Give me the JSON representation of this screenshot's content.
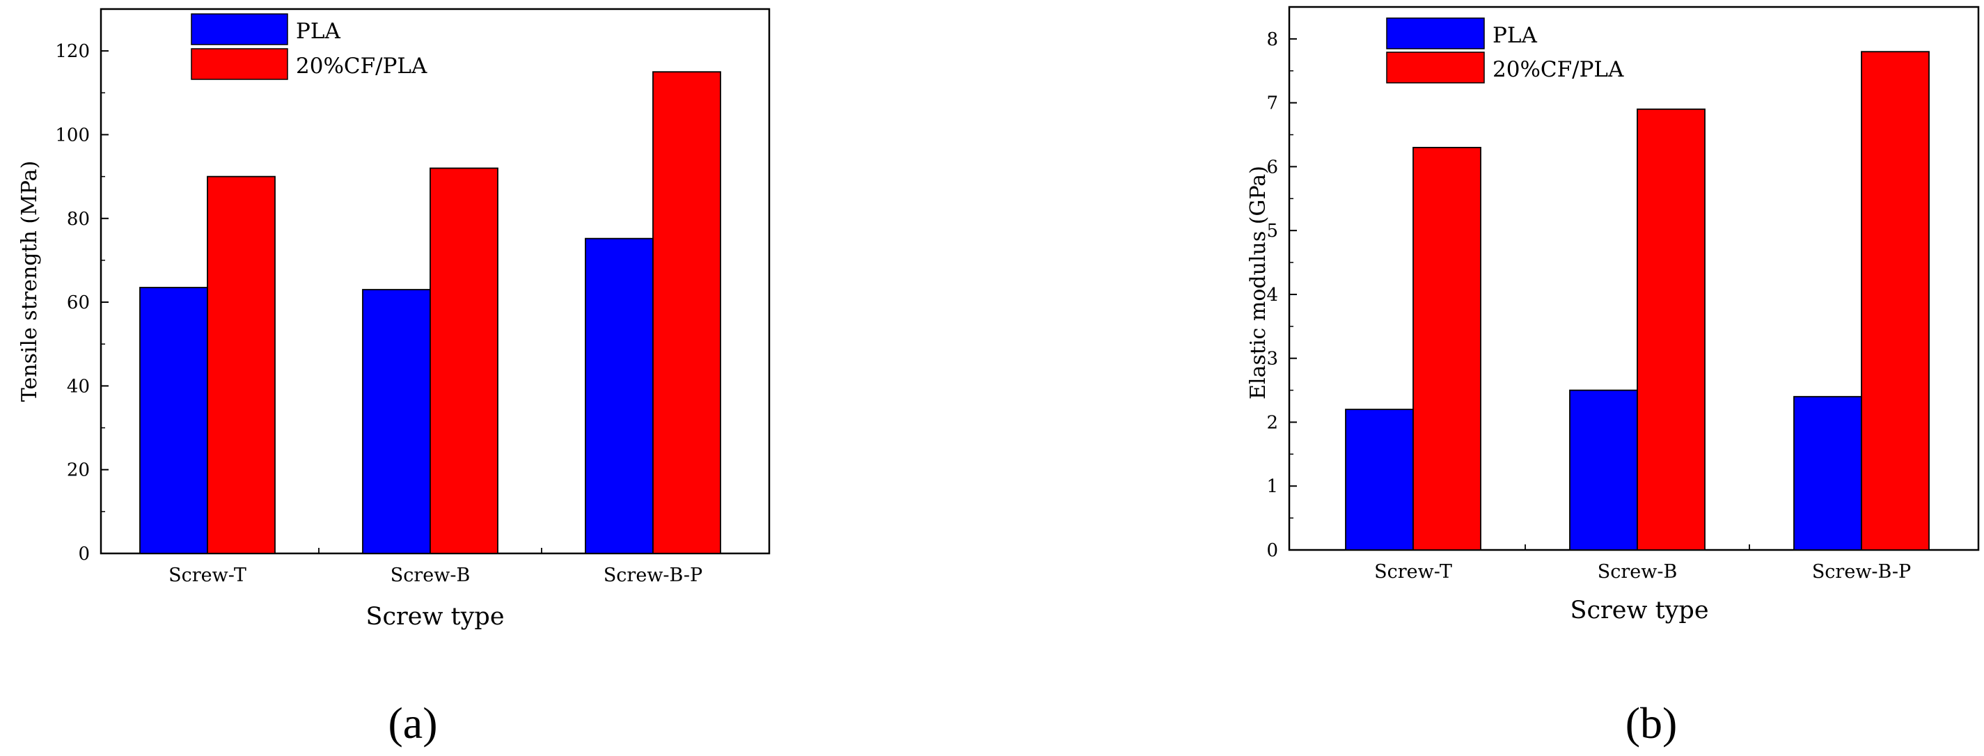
{
  "chart_data": [
    {
      "type": "bar",
      "panel_label": "(a)",
      "categories": [
        "Screw-T",
        "Screw-B",
        "Screw-B-P"
      ],
      "series": [
        {
          "name": "PLA",
          "values": [
            63.5,
            63,
            75.2
          ],
          "color": "#0000FF"
        },
        {
          "name": "20%CF/PLA",
          "values": [
            90,
            92,
            115
          ],
          "color": "#FF0000"
        }
      ],
      "xlabel": "Screw type",
      "ylabel": "Tensile strength (MPa)",
      "ylim": [
        0,
        130
      ],
      "yticks": [
        0,
        20,
        40,
        60,
        80,
        100,
        120
      ],
      "legend": "top-left",
      "grid": false
    },
    {
      "type": "bar",
      "panel_label": "(b)",
      "categories": [
        "Screw-T",
        "Screw-B",
        "Screw-B-P"
      ],
      "series": [
        {
          "name": "PLA",
          "values": [
            2.2,
            2.5,
            2.4
          ],
          "color": "#0000FF"
        },
        {
          "name": "20%CF/PLA",
          "values": [
            6.3,
            6.9,
            7.8
          ],
          "color": "#FF0000"
        }
      ],
      "xlabel": "Screw type",
      "ylabel": "Elastic modulus (GPa)",
      "ylim": [
        0,
        8.5
      ],
      "yticks": [
        0,
        1,
        2,
        3,
        4,
        5,
        6,
        7,
        8
      ],
      "legend": "top-left",
      "grid": false
    }
  ]
}
